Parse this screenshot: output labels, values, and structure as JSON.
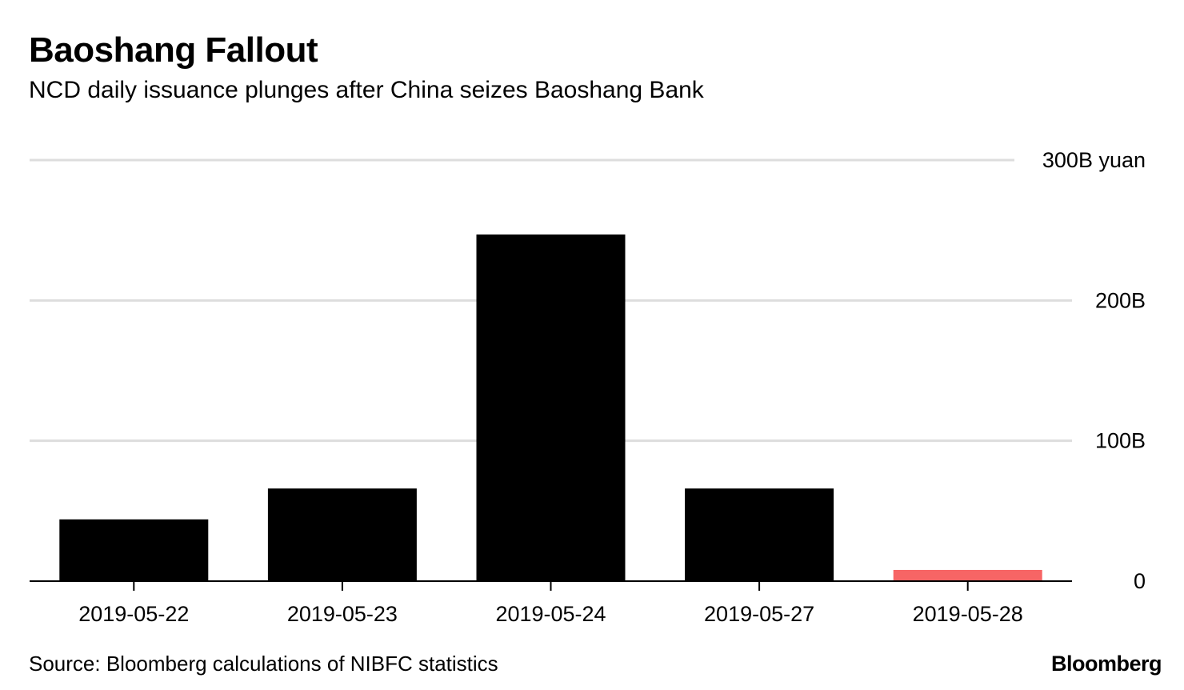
{
  "header": {
    "title": "Baoshang Fallout",
    "subtitle": "NCD daily issuance plunges after China seizes Baoshang Bank"
  },
  "footer": {
    "source": "Source: Bloomberg calculations of NIBFC statistics",
    "brand": "Bloomberg"
  },
  "colors": {
    "bar": "#000000",
    "highlight": "#f76565",
    "grid": "#dddddd",
    "axis": "#000000"
  },
  "chart_data": {
    "type": "bar",
    "categories": [
      "2019-05-22",
      "2019-05-23",
      "2019-05-24",
      "2019-05-27",
      "2019-05-28"
    ],
    "values": [
      44,
      66,
      247,
      66,
      8
    ],
    "highlight_index": 4,
    "ylim": [
      0,
      300
    ],
    "y_ticks": [
      {
        "value": 0,
        "label": "0"
      },
      {
        "value": 100,
        "label": "100B"
      },
      {
        "value": 200,
        "label": "200B"
      },
      {
        "value": 300,
        "label": "300B yuan"
      }
    ],
    "unit": "B yuan",
    "grid": true,
    "y_axis_side": "right"
  }
}
